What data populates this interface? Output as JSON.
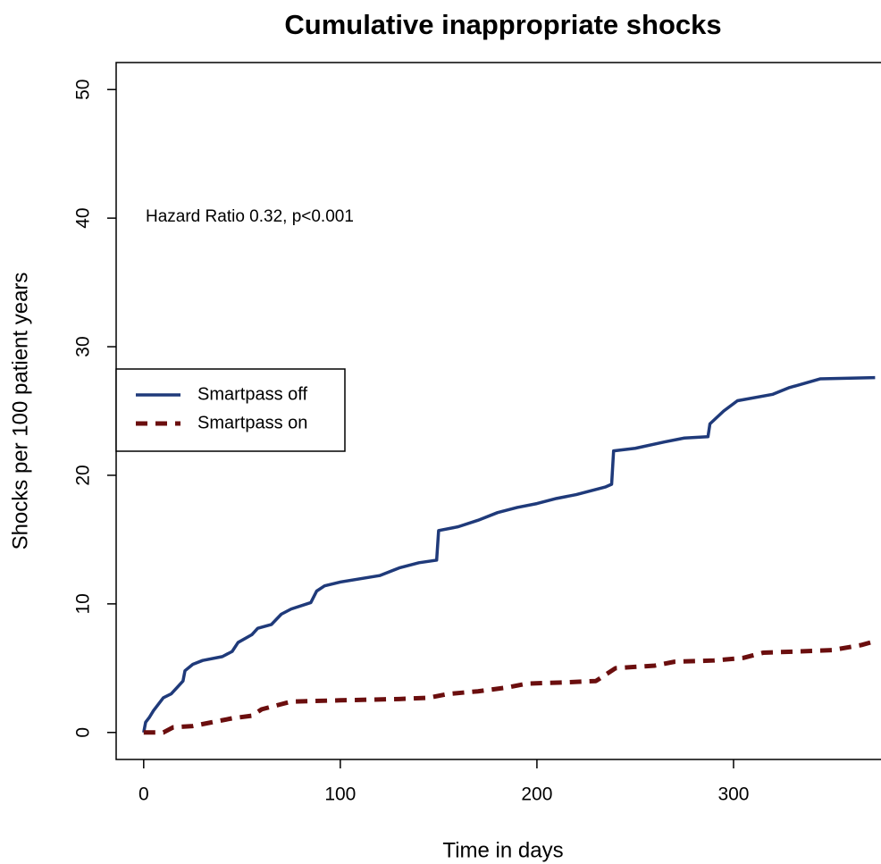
{
  "chart_data": {
    "type": "line",
    "title": "Cumulative inappropriate shocks",
    "xlabel": "Time in days",
    "ylabel": "Shocks per 100 patient years",
    "annotation": "Hazard Ratio 0.32, p<0.001",
    "xlim": [
      -14,
      375
    ],
    "ylim": [
      -2.1,
      52.1
    ],
    "xticks": [
      0,
      100,
      200,
      300
    ],
    "yticks": [
      0,
      10,
      20,
      30,
      40,
      50
    ],
    "legend": "left",
    "series": [
      {
        "name": "Smartpass off",
        "color": "#1f3a7a",
        "linestyle": "solid",
        "x": [
          0,
          1,
          3,
          5,
          8,
          10,
          14,
          17,
          20,
          21,
          25,
          30,
          40,
          45,
          48,
          55,
          58,
          65,
          70,
          75,
          85,
          88,
          92,
          100,
          120,
          130,
          140,
          149,
          150,
          160,
          170,
          180,
          190,
          200,
          210,
          220,
          235,
          238,
          239,
          250,
          265,
          275,
          287,
          288,
          295,
          302,
          320,
          328,
          344,
          372
        ],
        "values": [
          0,
          0.8,
          1.2,
          1.7,
          2.3,
          2.7,
          3.0,
          3.5,
          4.0,
          4.8,
          5.3,
          5.6,
          5.9,
          6.3,
          7.0,
          7.6,
          8.1,
          8.4,
          9.2,
          9.6,
          10.1,
          11.0,
          11.4,
          11.7,
          12.2,
          12.8,
          13.2,
          13.4,
          15.7,
          16.0,
          16.5,
          17.1,
          17.5,
          17.8,
          18.2,
          18.5,
          19.1,
          19.3,
          21.9,
          22.1,
          22.6,
          22.9,
          23.0,
          24.0,
          25.0,
          25.8,
          26.3,
          26.8,
          27.5,
          27.6
        ]
      },
      {
        "name": "Smartpass on",
        "color": "#6b0e0e",
        "linestyle": "dashed",
        "x": [
          0,
          10,
          15,
          25,
          35,
          45,
          55,
          60,
          70,
          75,
          100,
          130,
          145,
          155,
          170,
          185,
          195,
          215,
          230,
          235,
          240,
          260,
          270,
          290,
          305,
          315,
          350,
          365,
          372
        ],
        "values": [
          0,
          0,
          0.4,
          0.5,
          0.8,
          1.1,
          1.3,
          1.8,
          2.2,
          2.4,
          2.5,
          2.6,
          2.7,
          3.0,
          3.2,
          3.5,
          3.8,
          3.9,
          4.0,
          4.5,
          5.0,
          5.2,
          5.5,
          5.6,
          5.8,
          6.2,
          6.4,
          6.8,
          7.1
        ]
      }
    ]
  }
}
